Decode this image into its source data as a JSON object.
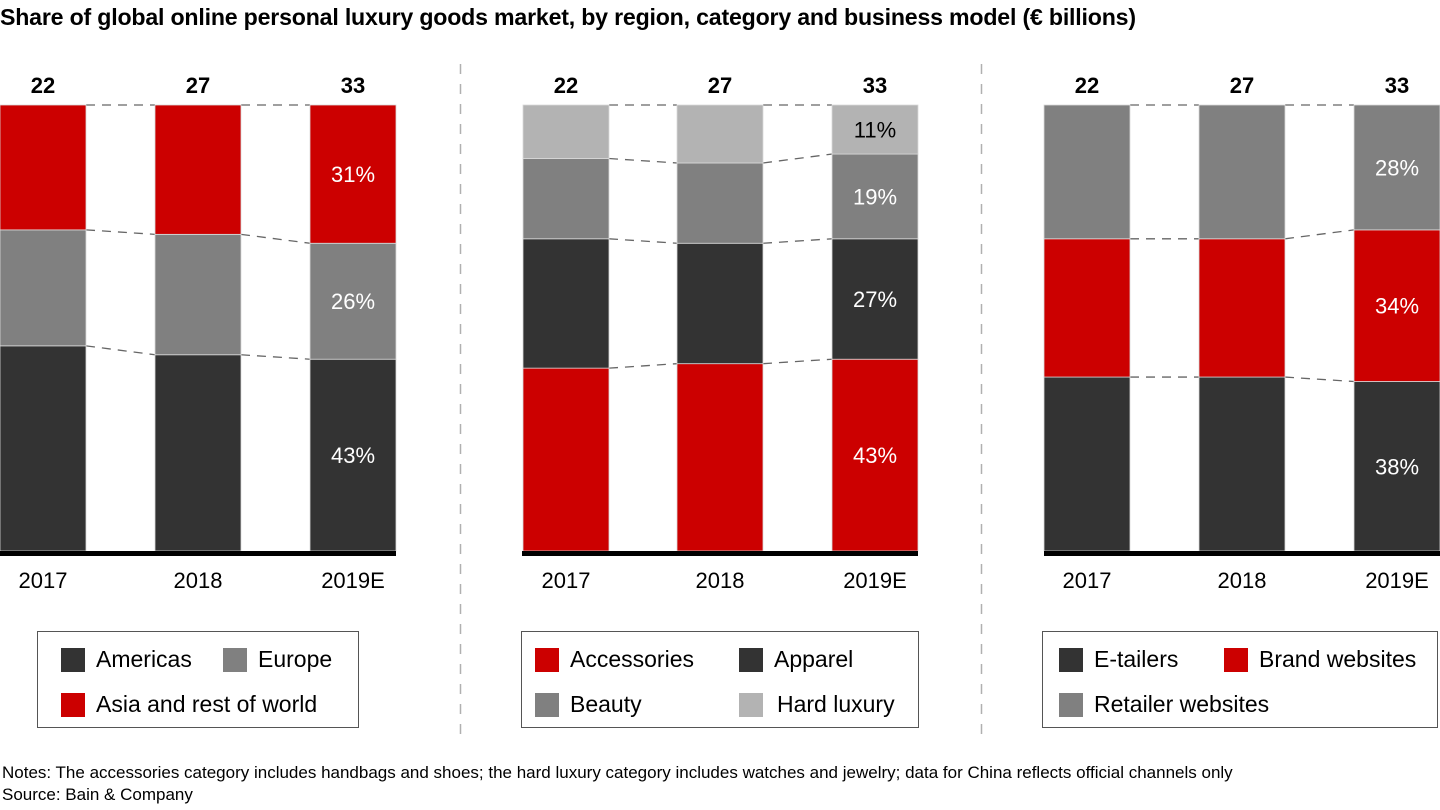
{
  "title": "Share of global online personal luxury goods market, by region, category and business model (€ billions)",
  "colors": {
    "red": "#cc0000",
    "dark": "#333333",
    "mid": "#808080",
    "light": "#b3b3b3"
  },
  "chart_data": [
    {
      "type": "bar",
      "stacked": true,
      "normalized": "percent",
      "name": "By region",
      "categories": [
        "2017",
        "2018",
        "2019E"
      ],
      "totals": [
        "22",
        "27",
        "33"
      ],
      "series": [
        {
          "name": "Americas",
          "color": "#333333",
          "values": [
            46,
            44,
            43
          ],
          "labels": [
            "",
            "",
            "43%"
          ]
        },
        {
          "name": "Europe",
          "color": "#808080",
          "values": [
            26,
            27,
            26
          ],
          "labels": [
            "",
            "",
            "26%"
          ]
        },
        {
          "name": "Asia and rest of world",
          "color": "#cc0000",
          "values": [
            28,
            29,
            31
          ],
          "labels": [
            "",
            "",
            "31%"
          ]
        }
      ],
      "ylim": [
        0,
        100
      ],
      "legend": {
        "placement": "bottom",
        "rows": [
          [
            "Americas",
            "Europe"
          ],
          [
            "Asia and rest of world"
          ]
        ]
      }
    },
    {
      "type": "bar",
      "stacked": true,
      "normalized": "percent",
      "name": "By category",
      "categories": [
        "2017",
        "2018",
        "2019E"
      ],
      "totals": [
        "22",
        "27",
        "33"
      ],
      "series": [
        {
          "name": "Accessories",
          "color": "#cc0000",
          "values": [
            41,
            42,
            43
          ],
          "labels": [
            "",
            "",
            "43%"
          ]
        },
        {
          "name": "Apparel",
          "color": "#333333",
          "values": [
            29,
            27,
            27
          ],
          "labels": [
            "",
            "",
            "27%"
          ]
        },
        {
          "name": "Beauty",
          "color": "#808080",
          "values": [
            18,
            18,
            19
          ],
          "labels": [
            "",
            "",
            "19%"
          ]
        },
        {
          "name": "Hard luxury",
          "color": "#b3b3b3",
          "values": [
            12,
            13,
            11
          ],
          "labels": [
            "",
            "",
            "11%"
          ]
        }
      ],
      "ylim": [
        0,
        100
      ],
      "legend": {
        "placement": "bottom",
        "rows": [
          [
            "Accessories",
            "Apparel"
          ],
          [
            "Beauty",
            "Hard luxury"
          ]
        ]
      }
    },
    {
      "type": "bar",
      "stacked": true,
      "normalized": "percent",
      "name": "By business model",
      "categories": [
        "2017",
        "2018",
        "2019E"
      ],
      "totals": [
        "22",
        "27",
        "33"
      ],
      "series": [
        {
          "name": "E-tailers",
          "color": "#333333",
          "values": [
            39,
            39,
            38
          ],
          "labels": [
            "",
            "",
            "38%"
          ]
        },
        {
          "name": "Brand websites",
          "color": "#cc0000",
          "values": [
            31,
            31,
            34
          ],
          "labels": [
            "",
            "",
            "34%"
          ]
        },
        {
          "name": "Retailer websites",
          "color": "#808080",
          "values": [
            30,
            30,
            28
          ],
          "labels": [
            "",
            "",
            "28%"
          ]
        }
      ],
      "ylim": [
        0,
        100
      ],
      "legend": {
        "placement": "bottom",
        "rows": [
          [
            "E-tailers",
            "Brand websites"
          ],
          [
            "Retailer websites"
          ]
        ]
      }
    }
  ],
  "notes": "Notes: The accessories category includes handbags and shoes; the hard luxury category includes watches and jewelry; data for China reflects official channels only",
  "source": "Source: Bain & Company"
}
